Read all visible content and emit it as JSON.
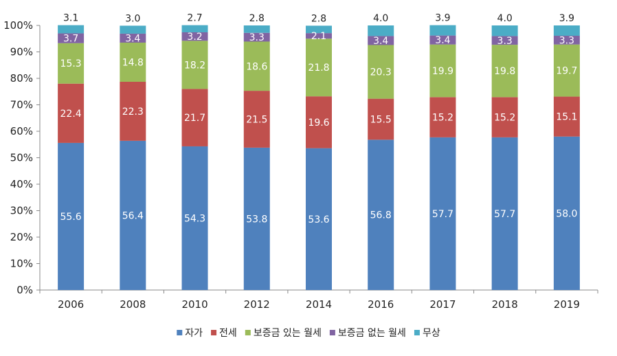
{
  "chart_data": {
    "type": "bar",
    "stacked": true,
    "categories": [
      "2006",
      "2008",
      "2010",
      "2012",
      "2014",
      "2016",
      "2017",
      "2018",
      "2019"
    ],
    "series": [
      {
        "name": "자가",
        "color": "#4F81BD",
        "label_color": "#FFFFFF",
        "values": [
          55.6,
          56.4,
          54.3,
          53.8,
          53.6,
          56.8,
          57.7,
          57.7,
          58.0
        ]
      },
      {
        "name": "전세",
        "color": "#C0504D",
        "label_color": "#FFFFFF",
        "values": [
          22.4,
          22.3,
          21.7,
          21.5,
          19.6,
          15.5,
          15.2,
          15.2,
          15.1
        ]
      },
      {
        "name": "보증금 있는 월세",
        "color": "#9BBB59",
        "label_color": "#FFFFFF",
        "values": [
          15.3,
          14.8,
          18.2,
          18.6,
          21.8,
          20.3,
          19.9,
          19.8,
          19.7
        ]
      },
      {
        "name": "보증금 없는 월세",
        "color": "#8064A2",
        "label_color": "#FFFFFF",
        "values": [
          3.7,
          3.4,
          3.2,
          3.3,
          2.1,
          3.4,
          3.4,
          3.3,
          3.3
        ]
      },
      {
        "name": "무상",
        "color": "#4BACC6",
        "label_color": "#222222",
        "values": [
          3.1,
          3.0,
          2.7,
          2.8,
          2.8,
          4.0,
          3.9,
          4.0,
          3.9
        ]
      }
    ],
    "value_labels": [
      [
        "55.6",
        "56.4",
        "54.3",
        "53.8",
        "53.6",
        "56.8",
        "57.7",
        "57.7",
        "58.0"
      ],
      [
        "22.4",
        "22.3",
        "21.7",
        "21.5",
        "19.6",
        "15.5",
        "15.2",
        "15.2",
        "15.1"
      ],
      [
        "15.3",
        "14.8",
        "18.2",
        "18.6",
        "21.8",
        "20.3",
        "19.9",
        "19.8",
        "19.7"
      ],
      [
        "3.7",
        "3.4",
        "3.2",
        "3.3",
        "2.1",
        "3.4",
        "3.4",
        "3.3",
        "3.3"
      ],
      [
        "3.1",
        "3.0",
        "2.7",
        "2.8",
        "2.8",
        "4.0",
        "3.9",
        "4.0",
        "3.9"
      ]
    ],
    "y_ticks": [
      "0%",
      "10%",
      "20%",
      "30%",
      "40%",
      "50%",
      "60%",
      "70%",
      "80%",
      "90%",
      "100%"
    ],
    "ylim": [
      0,
      100
    ],
    "grid": false,
    "legend": "bottom",
    "title": "",
    "xlabel": "",
    "ylabel": ""
  }
}
